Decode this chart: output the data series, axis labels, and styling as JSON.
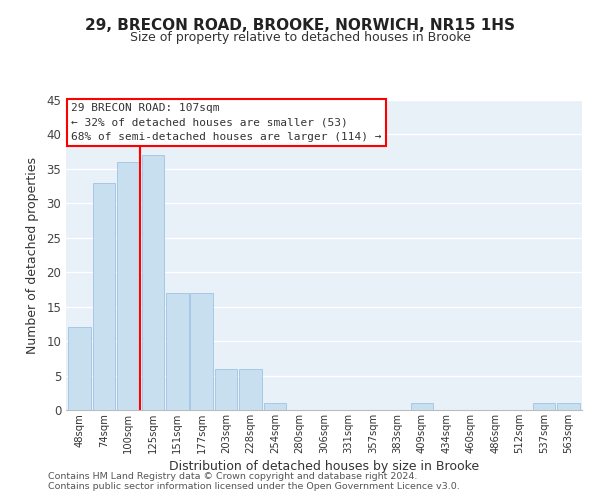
{
  "title": "29, BRECON ROAD, BROOKE, NORWICH, NR15 1HS",
  "subtitle": "Size of property relative to detached houses in Brooke",
  "xlabel": "Distribution of detached houses by size in Brooke",
  "ylabel": "Number of detached properties",
  "bar_color": "#c8dff0",
  "bar_edge_color": "#a8c8e8",
  "bin_labels": [
    "48sqm",
    "74sqm",
    "100sqm",
    "125sqm",
    "151sqm",
    "177sqm",
    "203sqm",
    "228sqm",
    "254sqm",
    "280sqm",
    "306sqm",
    "331sqm",
    "357sqm",
    "383sqm",
    "409sqm",
    "434sqm",
    "460sqm",
    "486sqm",
    "512sqm",
    "537sqm",
    "563sqm"
  ],
  "bar_heights": [
    12,
    33,
    36,
    37,
    17,
    17,
    6,
    6,
    1,
    0,
    0,
    0,
    0,
    0,
    1,
    0,
    0,
    0,
    0,
    1,
    1
  ],
  "ylim": [
    0,
    45
  ],
  "yticks": [
    0,
    5,
    10,
    15,
    20,
    25,
    30,
    35,
    40,
    45
  ],
  "property_line_bin": 2,
  "annotation_line1": "29 BRECON ROAD: 107sqm",
  "annotation_line2": "← 32% of detached houses are smaller (53)",
  "annotation_line3": "68% of semi-detached houses are larger (114) →",
  "footer_line1": "Contains HM Land Registry data © Crown copyright and database right 2024.",
  "footer_line2": "Contains public sector information licensed under the Open Government Licence v3.0.",
  "grid_color": "#ffffff",
  "background_color": "#e8f0f8",
  "fig_background": "#ffffff",
  "title_fontsize": 11,
  "subtitle_fontsize": 9
}
